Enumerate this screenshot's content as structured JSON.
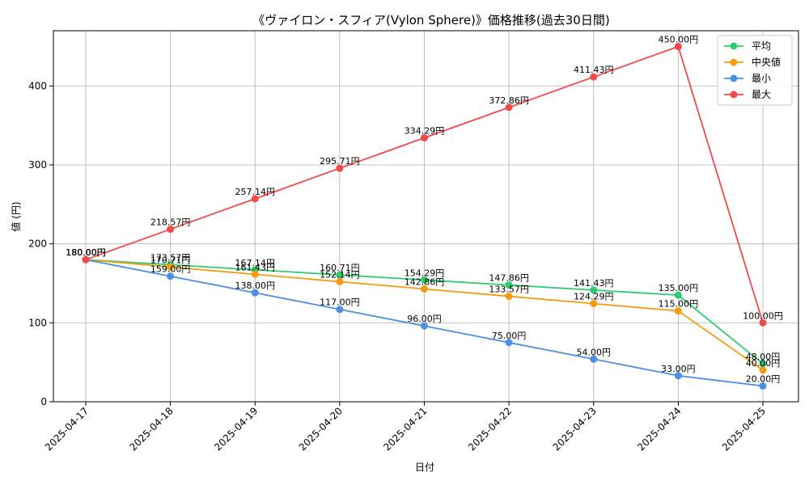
{
  "chart_data": {
    "type": "line",
    "title": "《ヴァイロン・スフィア(Vylon Sphere)》価格推移(過去30日間)",
    "xlabel": "日付",
    "ylabel": "値 (円)",
    "categories": [
      "2025-04-17",
      "2025-04-18",
      "2025-04-19",
      "2025-04-20",
      "2025-04-21",
      "2025-04-22",
      "2025-04-23",
      "2025-04-24",
      "2025-04-25"
    ],
    "ylim": [
      0,
      470
    ],
    "yticks": [
      0,
      100,
      200,
      300,
      400
    ],
    "grid": true,
    "legend_position": "top-right",
    "value_suffix": "円",
    "series": [
      {
        "name": "平均",
        "color": "#2ecc71",
        "values": [
          180.0,
          173.57,
          167.14,
          160.71,
          154.29,
          147.86,
          141.43,
          135.0,
          48.0
        ]
      },
      {
        "name": "中央値",
        "color": "#f39c12",
        "values": [
          180.0,
          170.71,
          161.43,
          152.14,
          142.86,
          133.57,
          124.29,
          115.0,
          40.0
        ]
      },
      {
        "name": "最小",
        "color": "#4a90e2",
        "values": [
          180.0,
          159.0,
          138.0,
          117.0,
          96.0,
          75.0,
          54.0,
          33.0,
          20.0
        ]
      },
      {
        "name": "最大",
        "color": "#f04a4a",
        "values": [
          180.0,
          218.57,
          257.14,
          295.71,
          334.29,
          372.86,
          411.43,
          450.0,
          100.0
        ]
      }
    ]
  }
}
